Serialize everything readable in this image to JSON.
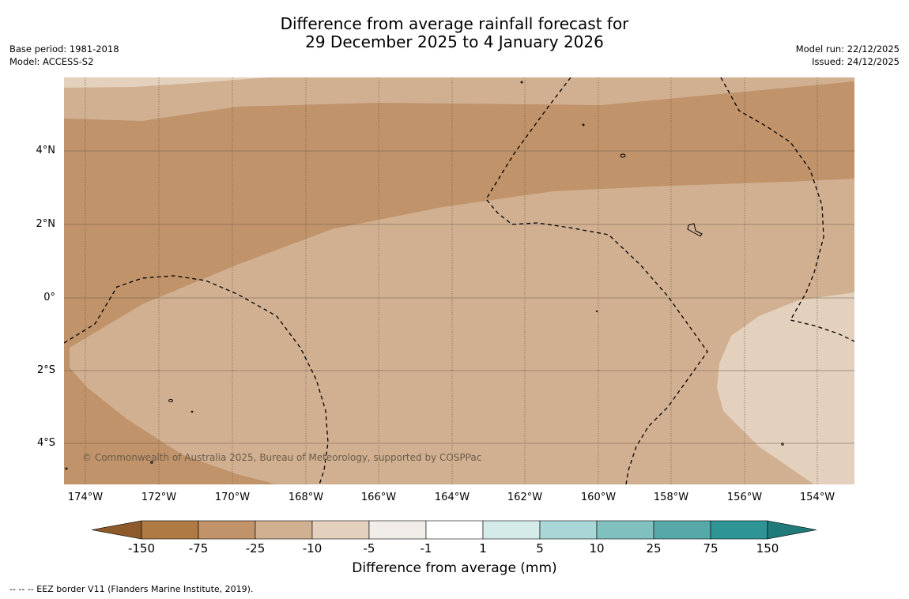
{
  "title": {
    "line1": "Difference from average rainfall forecast for",
    "line2": "29 December 2025 to 4 January 2026"
  },
  "meta_left": {
    "base_period": "Base period: 1981-2018",
    "model": "Model: ACCESS-S2"
  },
  "meta_right": {
    "model_run": "Model run: 22/12/2025",
    "issued": "Issued: 24/12/2025"
  },
  "map": {
    "lat_ticks": [
      "4°N",
      "2°N",
      "0°",
      "2°S",
      "4°S"
    ],
    "lon_ticks": [
      "174°W",
      "172°W",
      "170°W",
      "168°W",
      "166°W",
      "164°W",
      "162°W",
      "160°W",
      "158°W",
      "156°W",
      "154°W"
    ],
    "copyright": "© Commonwealth of Australia 2025, Bureau of Meteorology, supported by COSPPac",
    "colors": {
      "dark_band": "#c0936a",
      "mid_band": "#d1b092",
      "light_band": "#e3d0bd"
    }
  },
  "colorbar": {
    "ticks": [
      "-150",
      "-75",
      "-25",
      "-10",
      "-5",
      "-1",
      "1",
      "5",
      "10",
      "25",
      "75",
      "150"
    ],
    "colors": [
      "#8c5a2b",
      "#b07a44",
      "#c0936a",
      "#d1b092",
      "#e3d0bd",
      "#f1ede8",
      "#ffffff",
      "#d5ebea",
      "#a9d6d6",
      "#80c0bf",
      "#57a8a8",
      "#2e9494",
      "#207a7a"
    ],
    "label": "Difference from average (mm)"
  },
  "footnote": "--  --  -- EEZ border V11 (Flanders Marine Institute, 2019)."
}
